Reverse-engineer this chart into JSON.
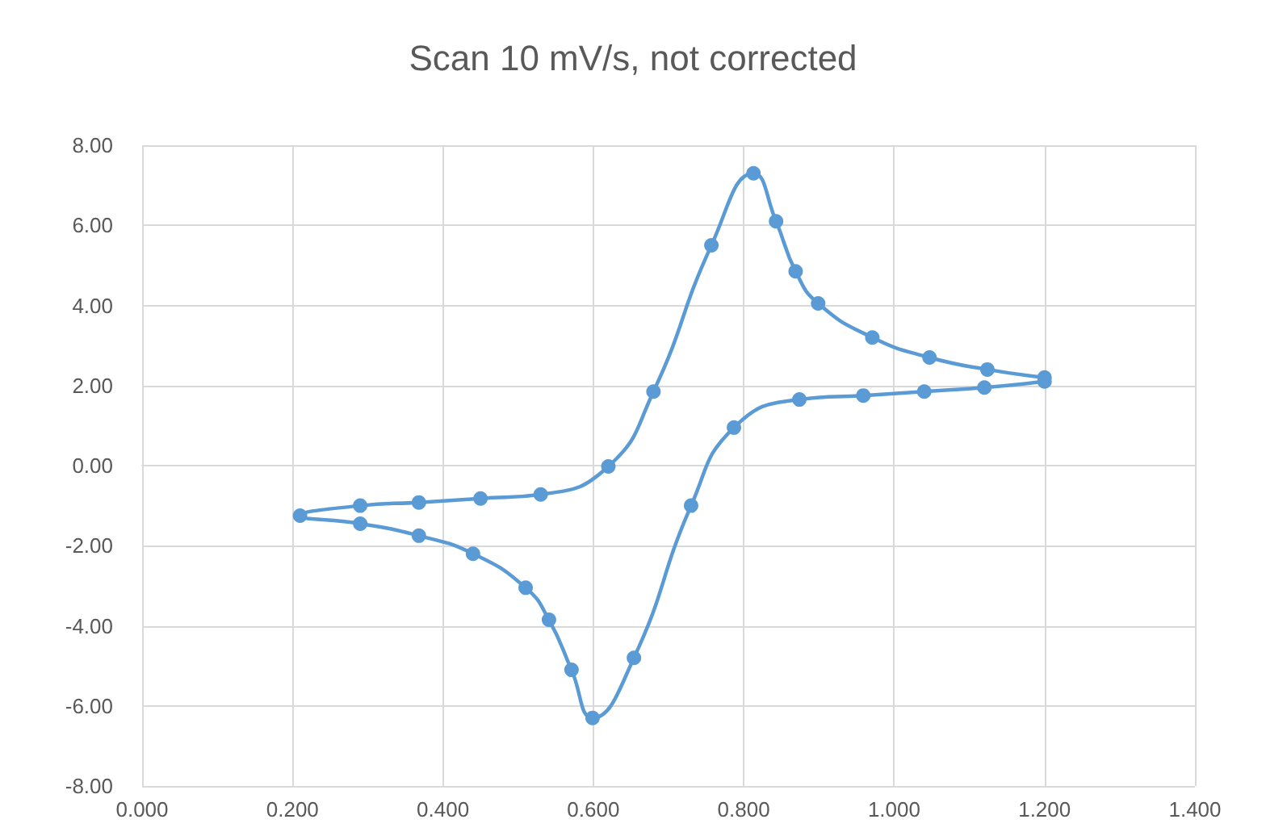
{
  "chart_data": {
    "type": "line",
    "title": "Scan 10 mV/s, not corrected",
    "marker": "circle",
    "grid": true,
    "xlim": [
      0,
      1.4
    ],
    "xticks": [
      {
        "value": 0,
        "label": "0.000"
      },
      {
        "value": 0.2,
        "label": "0.200"
      },
      {
        "value": 0.4,
        "label": "0.400"
      },
      {
        "value": 0.6,
        "label": "0.600"
      },
      {
        "value": 0.8,
        "label": "0.800"
      },
      {
        "value": 1.0,
        "label": "1.000"
      },
      {
        "value": 1.2,
        "label": "1.200"
      },
      {
        "value": 1.4,
        "label": "1.400"
      }
    ],
    "ylim": [
      -8,
      8
    ],
    "yticks": [
      {
        "value": -8,
        "label": "-8.00"
      },
      {
        "value": -6,
        "label": "-6.00"
      },
      {
        "value": -4,
        "label": "-4.00"
      },
      {
        "value": -2,
        "label": "-2.00"
      },
      {
        "value": 0,
        "label": "0.00"
      },
      {
        "value": 2,
        "label": "2.00"
      },
      {
        "value": 4,
        "label": "4.00"
      },
      {
        "value": 6,
        "label": "6.00"
      },
      {
        "value": 8,
        "label": "8.00"
      }
    ],
    "series": [
      {
        "color": "#5b9bd5",
        "x": [
          1.2,
          1.124,
          1.047,
          0.971,
          0.899,
          0.869,
          0.843,
          0.813,
          0.757,
          0.68,
          0.62,
          0.53,
          0.45,
          0.368,
          0.29,
          0.21,
          0.29,
          0.368,
          0.44,
          0.51,
          0.541,
          0.571,
          0.599,
          0.654,
          0.73,
          0.787,
          0.874,
          0.959,
          1.04,
          1.12,
          1.2
        ],
        "values": [
          2.2,
          2.4,
          2.7,
          3.2,
          4.05,
          4.85,
          6.1,
          7.3,
          5.5,
          1.85,
          -0.02,
          -0.72,
          -0.82,
          -0.92,
          -1.0,
          -1.25,
          -1.45,
          -1.75,
          -2.2,
          -3.05,
          -3.85,
          -5.1,
          -6.3,
          -4.8,
          -1.0,
          0.95,
          1.65,
          1.75,
          1.85,
          1.95,
          2.1
        ]
      }
    ]
  }
}
